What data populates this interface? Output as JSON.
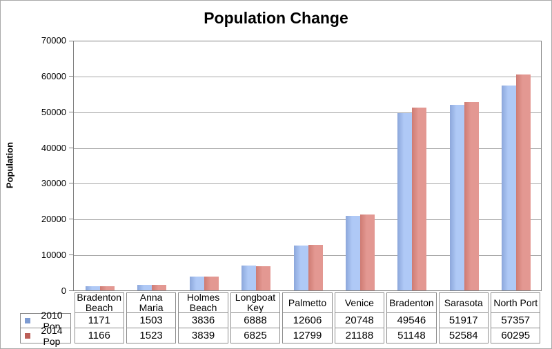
{
  "chart_data": {
    "type": "bar",
    "title": "Population Change",
    "xlabel": "",
    "ylabel": "Population",
    "categories": [
      "Bradenton Beach",
      "Anna Maria",
      "Holmes Beach",
      "Longboat Key",
      "Palmetto",
      "Venice",
      "Bradenton",
      "Sarasota",
      "North Port"
    ],
    "series": [
      {
        "name": "2010 Pop",
        "values": [
          1171,
          1503,
          3836,
          6888,
          12606,
          20748,
          49546,
          51917,
          57357
        ],
        "color_light": "#AFC9F6",
        "color_dark": "#8CA7DB",
        "legend_color": "#7D9BD2"
      },
      {
        "name": "2014 Pop",
        "values": [
          1166,
          1523,
          3839,
          6825,
          12799,
          21188,
          51148,
          52584,
          60295
        ],
        "color_light": "#E39892",
        "color_dark": "#CE7B73",
        "legend_color": "#BC5F58"
      }
    ],
    "ylim": [
      0,
      70000
    ],
    "ytick_step": 10000,
    "grid": true,
    "legend_position": "table-left",
    "axis_color": "#7f7f7f",
    "gridline_color": "#a6a6a6"
  }
}
